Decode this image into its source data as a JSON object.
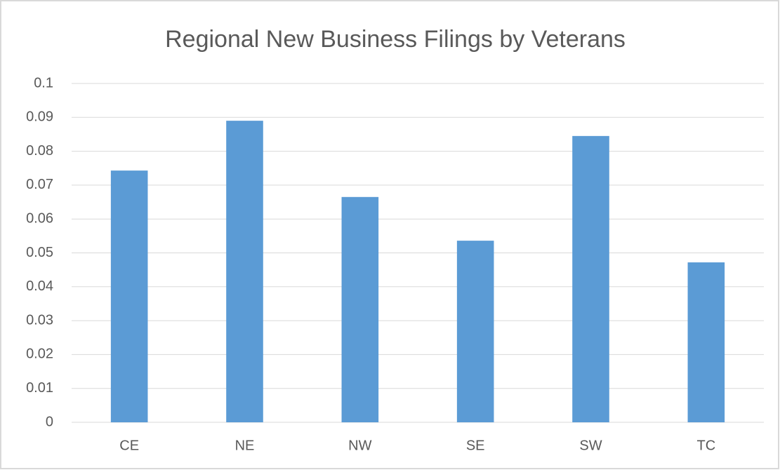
{
  "chart_data": {
    "type": "bar",
    "title": "Regional New Business Filings by Veterans",
    "categories": [
      "CE",
      "NE",
      "NW",
      "SE",
      "SW",
      "TC"
    ],
    "values": [
      0.0743,
      0.089,
      0.0665,
      0.0536,
      0.0845,
      0.0472
    ],
    "color": "#5b9bd5",
    "ylim": [
      0,
      0.1
    ],
    "yticks": [
      0,
      0.01,
      0.02,
      0.03,
      0.04,
      0.05,
      0.06,
      0.07,
      0.08,
      0.09,
      0.1
    ],
    "grid": true
  }
}
